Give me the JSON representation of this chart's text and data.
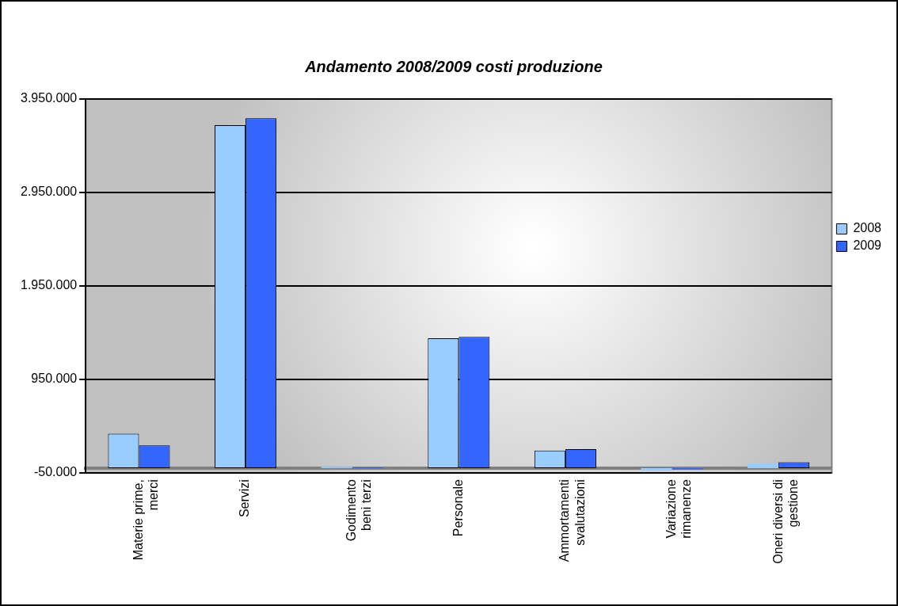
{
  "chart_data": {
    "type": "bar",
    "title": "Andamento 2008/2009 costi produzione",
    "categories": [
      "Materie prime, merci",
      "Servizi",
      "Godimento beni terzi",
      "Personale",
      "Ammortamenti svalutazioni",
      "Variazione rimanenze",
      "Oneri diversi di gestione"
    ],
    "series": [
      {
        "name": "2008",
        "color": "#99ccff",
        "values": [
          370000,
          3670000,
          15000,
          1390000,
          190000,
          -25000,
          50000
        ]
      },
      {
        "name": "2009",
        "color": "#3366ff",
        "values": [
          245000,
          3745000,
          10000,
          1405000,
          205000,
          -15000,
          65000
        ]
      }
    ],
    "ylim": [
      -50000,
      3950000
    ],
    "yticks": [
      {
        "value": -50000,
        "label": "-50.000"
      },
      {
        "value": 950000,
        "label": "950.000"
      },
      {
        "value": 1950000,
        "label": "1.950.000"
      },
      {
        "value": 2950000,
        "label": "2.950.000"
      },
      {
        "value": 3950000,
        "label": "3.950.000"
      }
    ],
    "grid": "y",
    "legend": "right"
  }
}
